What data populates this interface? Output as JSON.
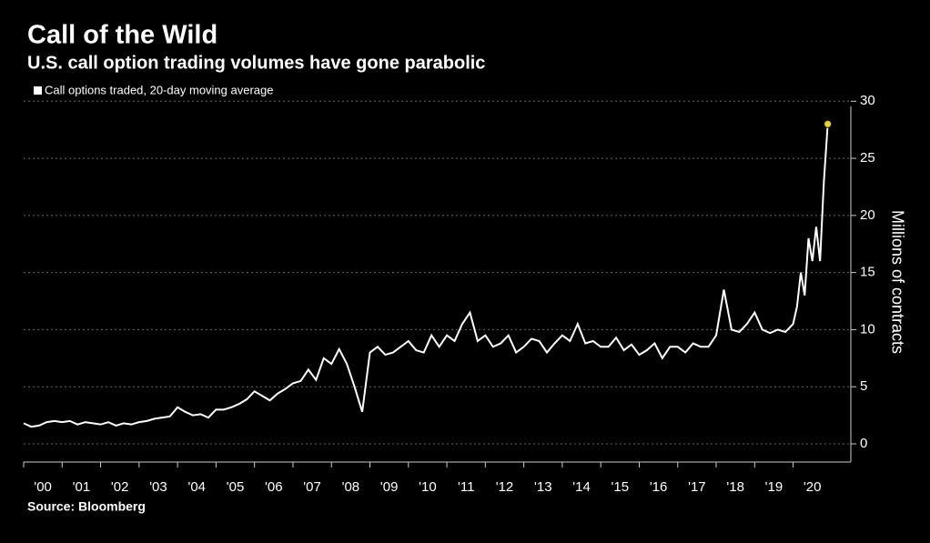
{
  "chart_data": {
    "type": "line",
    "title": "Call of the Wild",
    "subtitle": "U.S. call option trading volumes have gone parabolic",
    "y_label": "Millions of contracts",
    "source": "Source: Bloomberg",
    "xlim": [
      2000,
      2021.5
    ],
    "ylim": [
      0,
      30.5
    ],
    "xticks": [
      {
        "value": 2000,
        "label": "'00"
      },
      {
        "value": 2001,
        "label": "'01"
      },
      {
        "value": 2002,
        "label": "'02"
      },
      {
        "value": 2003,
        "label": "'03"
      },
      {
        "value": 2004,
        "label": "'04"
      },
      {
        "value": 2005,
        "label": "'05"
      },
      {
        "value": 2006,
        "label": "'06"
      },
      {
        "value": 2007,
        "label": "'07"
      },
      {
        "value": 2008,
        "label": "'08"
      },
      {
        "value": 2009,
        "label": "'09"
      },
      {
        "value": 2010,
        "label": "'10"
      },
      {
        "value": 2011,
        "label": "'11"
      },
      {
        "value": 2012,
        "label": "'12"
      },
      {
        "value": 2013,
        "label": "'13"
      },
      {
        "value": 2014,
        "label": "'14"
      },
      {
        "value": 2015,
        "label": "'15"
      },
      {
        "value": 2016,
        "label": "'16"
      },
      {
        "value": 2017,
        "label": "'17"
      },
      {
        "value": 2018,
        "label": "'18"
      },
      {
        "value": 2019,
        "label": "'19"
      },
      {
        "value": 2020,
        "label": "'20"
      }
    ],
    "yticks": [
      0,
      5,
      10,
      15,
      20,
      25,
      30
    ],
    "grid": true,
    "legend": "top-left",
    "marker_color": "#e5d23a",
    "x": [
      2000,
      2000.2,
      2000.4,
      2000.6,
      2000.8,
      2001,
      2001.2,
      2001.4,
      2001.6,
      2001.8,
      2002,
      2002.2,
      2002.4,
      2002.6,
      2002.8,
      2003,
      2003.2,
      2003.4,
      2003.6,
      2003.8,
      2004,
      2004.2,
      2004.4,
      2004.6,
      2004.8,
      2005,
      2005.2,
      2005.4,
      2005.6,
      2005.8,
      2006,
      2006.2,
      2006.4,
      2006.6,
      2006.8,
      2007,
      2007.2,
      2007.4,
      2007.6,
      2007.8,
      2008,
      2008.2,
      2008.4,
      2008.6,
      2008.8,
      2009,
      2009.2,
      2009.4,
      2009.6,
      2009.8,
      2010,
      2010.2,
      2010.4,
      2010.6,
      2010.8,
      2011,
      2011.2,
      2011.4,
      2011.6,
      2011.8,
      2012,
      2012.2,
      2012.4,
      2012.6,
      2012.8,
      2013,
      2013.2,
      2013.4,
      2013.6,
      2013.8,
      2014,
      2014.2,
      2014.4,
      2014.6,
      2014.8,
      2015,
      2015.2,
      2015.4,
      2015.6,
      2015.8,
      2016,
      2016.2,
      2016.4,
      2016.6,
      2016.8,
      2017,
      2017.2,
      2017.4,
      2017.6,
      2017.8,
      2018,
      2018.2,
      2018.4,
      2018.6,
      2018.8,
      2019,
      2019.2,
      2019.4,
      2019.6,
      2019.8,
      2020,
      2020.1,
      2020.2,
      2020.3,
      2020.4,
      2020.5,
      2020.6,
      2020.7,
      2020.8,
      2020.9
    ],
    "series": [
      {
        "name": "Call options traded, 20-day moving average",
        "color": "#ffffff",
        "values": [
          1.8,
          1.5,
          1.6,
          1.9,
          2.0,
          1.9,
          2.0,
          1.7,
          1.9,
          1.8,
          1.7,
          1.9,
          1.6,
          1.8,
          1.7,
          1.9,
          2.0,
          2.2,
          2.3,
          2.4,
          3.2,
          2.8,
          2.5,
          2.6,
          2.3,
          3.0,
          3.0,
          3.2,
          3.5,
          3.9,
          4.6,
          4.2,
          3.8,
          4.4,
          4.8,
          5.3,
          5.5,
          6.5,
          5.6,
          7.5,
          7.0,
          8.3,
          7.0,
          5.0,
          2.8,
          8.0,
          8.5,
          7.8,
          8.0,
          8.5,
          9.0,
          8.2,
          8.0,
          9.5,
          8.5,
          9.5,
          9.0,
          10.5,
          11.5,
          9.0,
          9.5,
          8.5,
          8.8,
          9.5,
          8.0,
          8.5,
          9.2,
          9.0,
          8.0,
          8.8,
          9.5,
          9.0,
          10.5,
          8.8,
          9.0,
          8.5,
          8.5,
          9.3,
          8.2,
          8.7,
          7.8,
          8.2,
          8.8,
          7.5,
          8.5,
          8.5,
          8.0,
          8.8,
          8.5,
          8.5,
          9.5,
          13.5,
          10.0,
          9.8,
          10.5,
          11.5,
          10.0,
          9.7,
          10.0,
          9.8,
          10.5,
          12,
          15,
          13,
          18,
          16,
          19,
          16,
          23,
          28
        ]
      }
    ]
  }
}
